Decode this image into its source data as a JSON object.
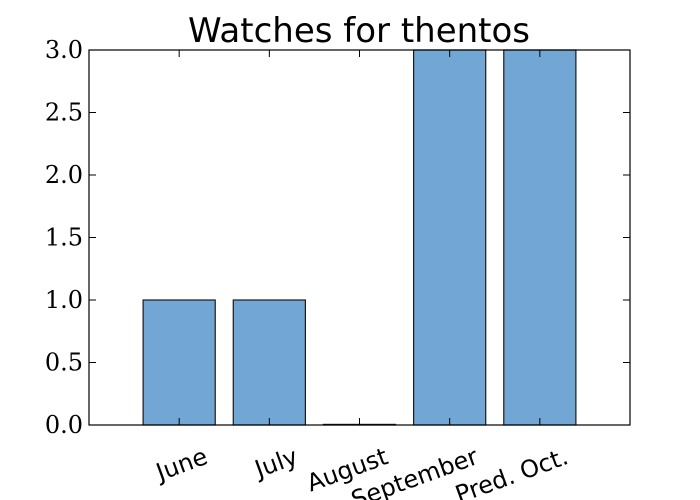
{
  "chart_data": {
    "type": "bar",
    "title": "Watches for thentos",
    "xlabel": "",
    "ylabel": "",
    "categories": [
      "June",
      "July",
      "August",
      "September",
      "Pred. Oct."
    ],
    "values": [
      1,
      1,
      0,
      3,
      3
    ],
    "ylim": [
      0,
      3.0
    ],
    "yticks": [
      "0.0",
      "0.5",
      "1.0",
      "1.5",
      "2.0",
      "2.5",
      "3.0"
    ],
    "grid": false,
    "legend": "none",
    "bar_color": "#72a7d5",
    "bar_edge_color": "#1a1a1a"
  }
}
